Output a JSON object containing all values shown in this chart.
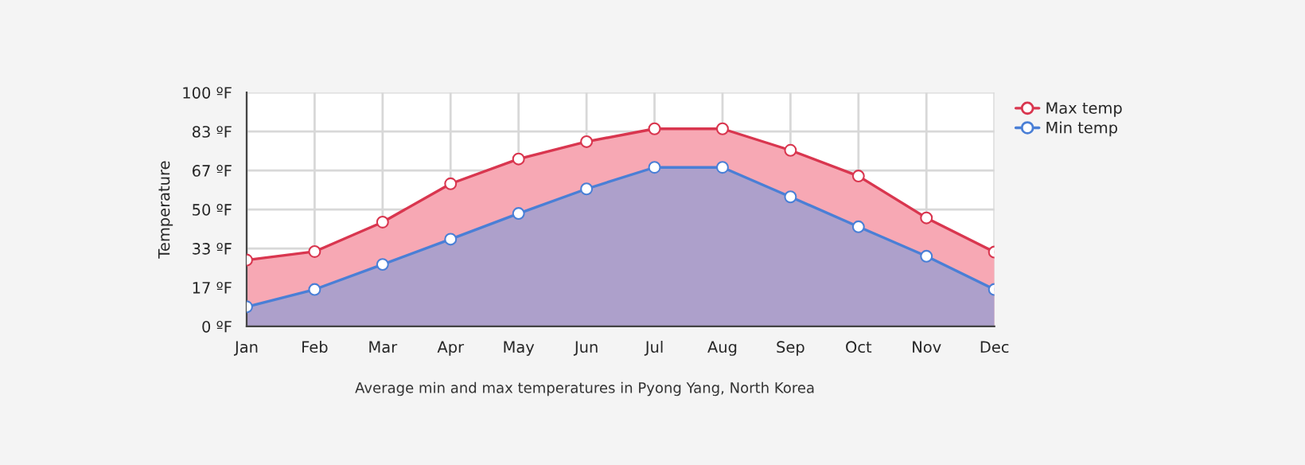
{
  "chart_data": {
    "type": "area",
    "ylabel": "Temperature",
    "categories": [
      "Jan",
      "Feb",
      "Mar",
      "Apr",
      "May",
      "Jun",
      "Jul",
      "Aug",
      "Sep",
      "Oct",
      "Nov",
      "Dec"
    ],
    "series": [
      {
        "name": "Max temp",
        "color": "#d9364f",
        "values": [
          28.4,
          32,
          44.6,
          61,
          71.6,
          79,
          84.5,
          84.5,
          75.3,
          64.3,
          46.4,
          31.8
        ]
      },
      {
        "name": "Min temp",
        "color": "#4a7fd6",
        "values": [
          8.4,
          15.8,
          26.5,
          37.3,
          48.3,
          58.8,
          68,
          68,
          55.4,
          42.6,
          30,
          15.8
        ]
      }
    ],
    "ylim": [
      0,
      100
    ],
    "yticks": [
      {
        "value": 0,
        "label": "0 ºF"
      },
      {
        "value": 16.67,
        "label": "17 ºF"
      },
      {
        "value": 33.33,
        "label": "33 ºF"
      },
      {
        "value": 50,
        "label": "50 ºF"
      },
      {
        "value": 66.67,
        "label": "67 ºF"
      },
      {
        "value": 83.33,
        "label": "83 ºF"
      },
      {
        "value": 100,
        "label": "100 ºF"
      }
    ],
    "grid": true,
    "legend": "top right",
    "marker": "circle",
    "annotations": [
      "Average min and max temperatures in Pyong Yang, North Korea"
    ]
  }
}
